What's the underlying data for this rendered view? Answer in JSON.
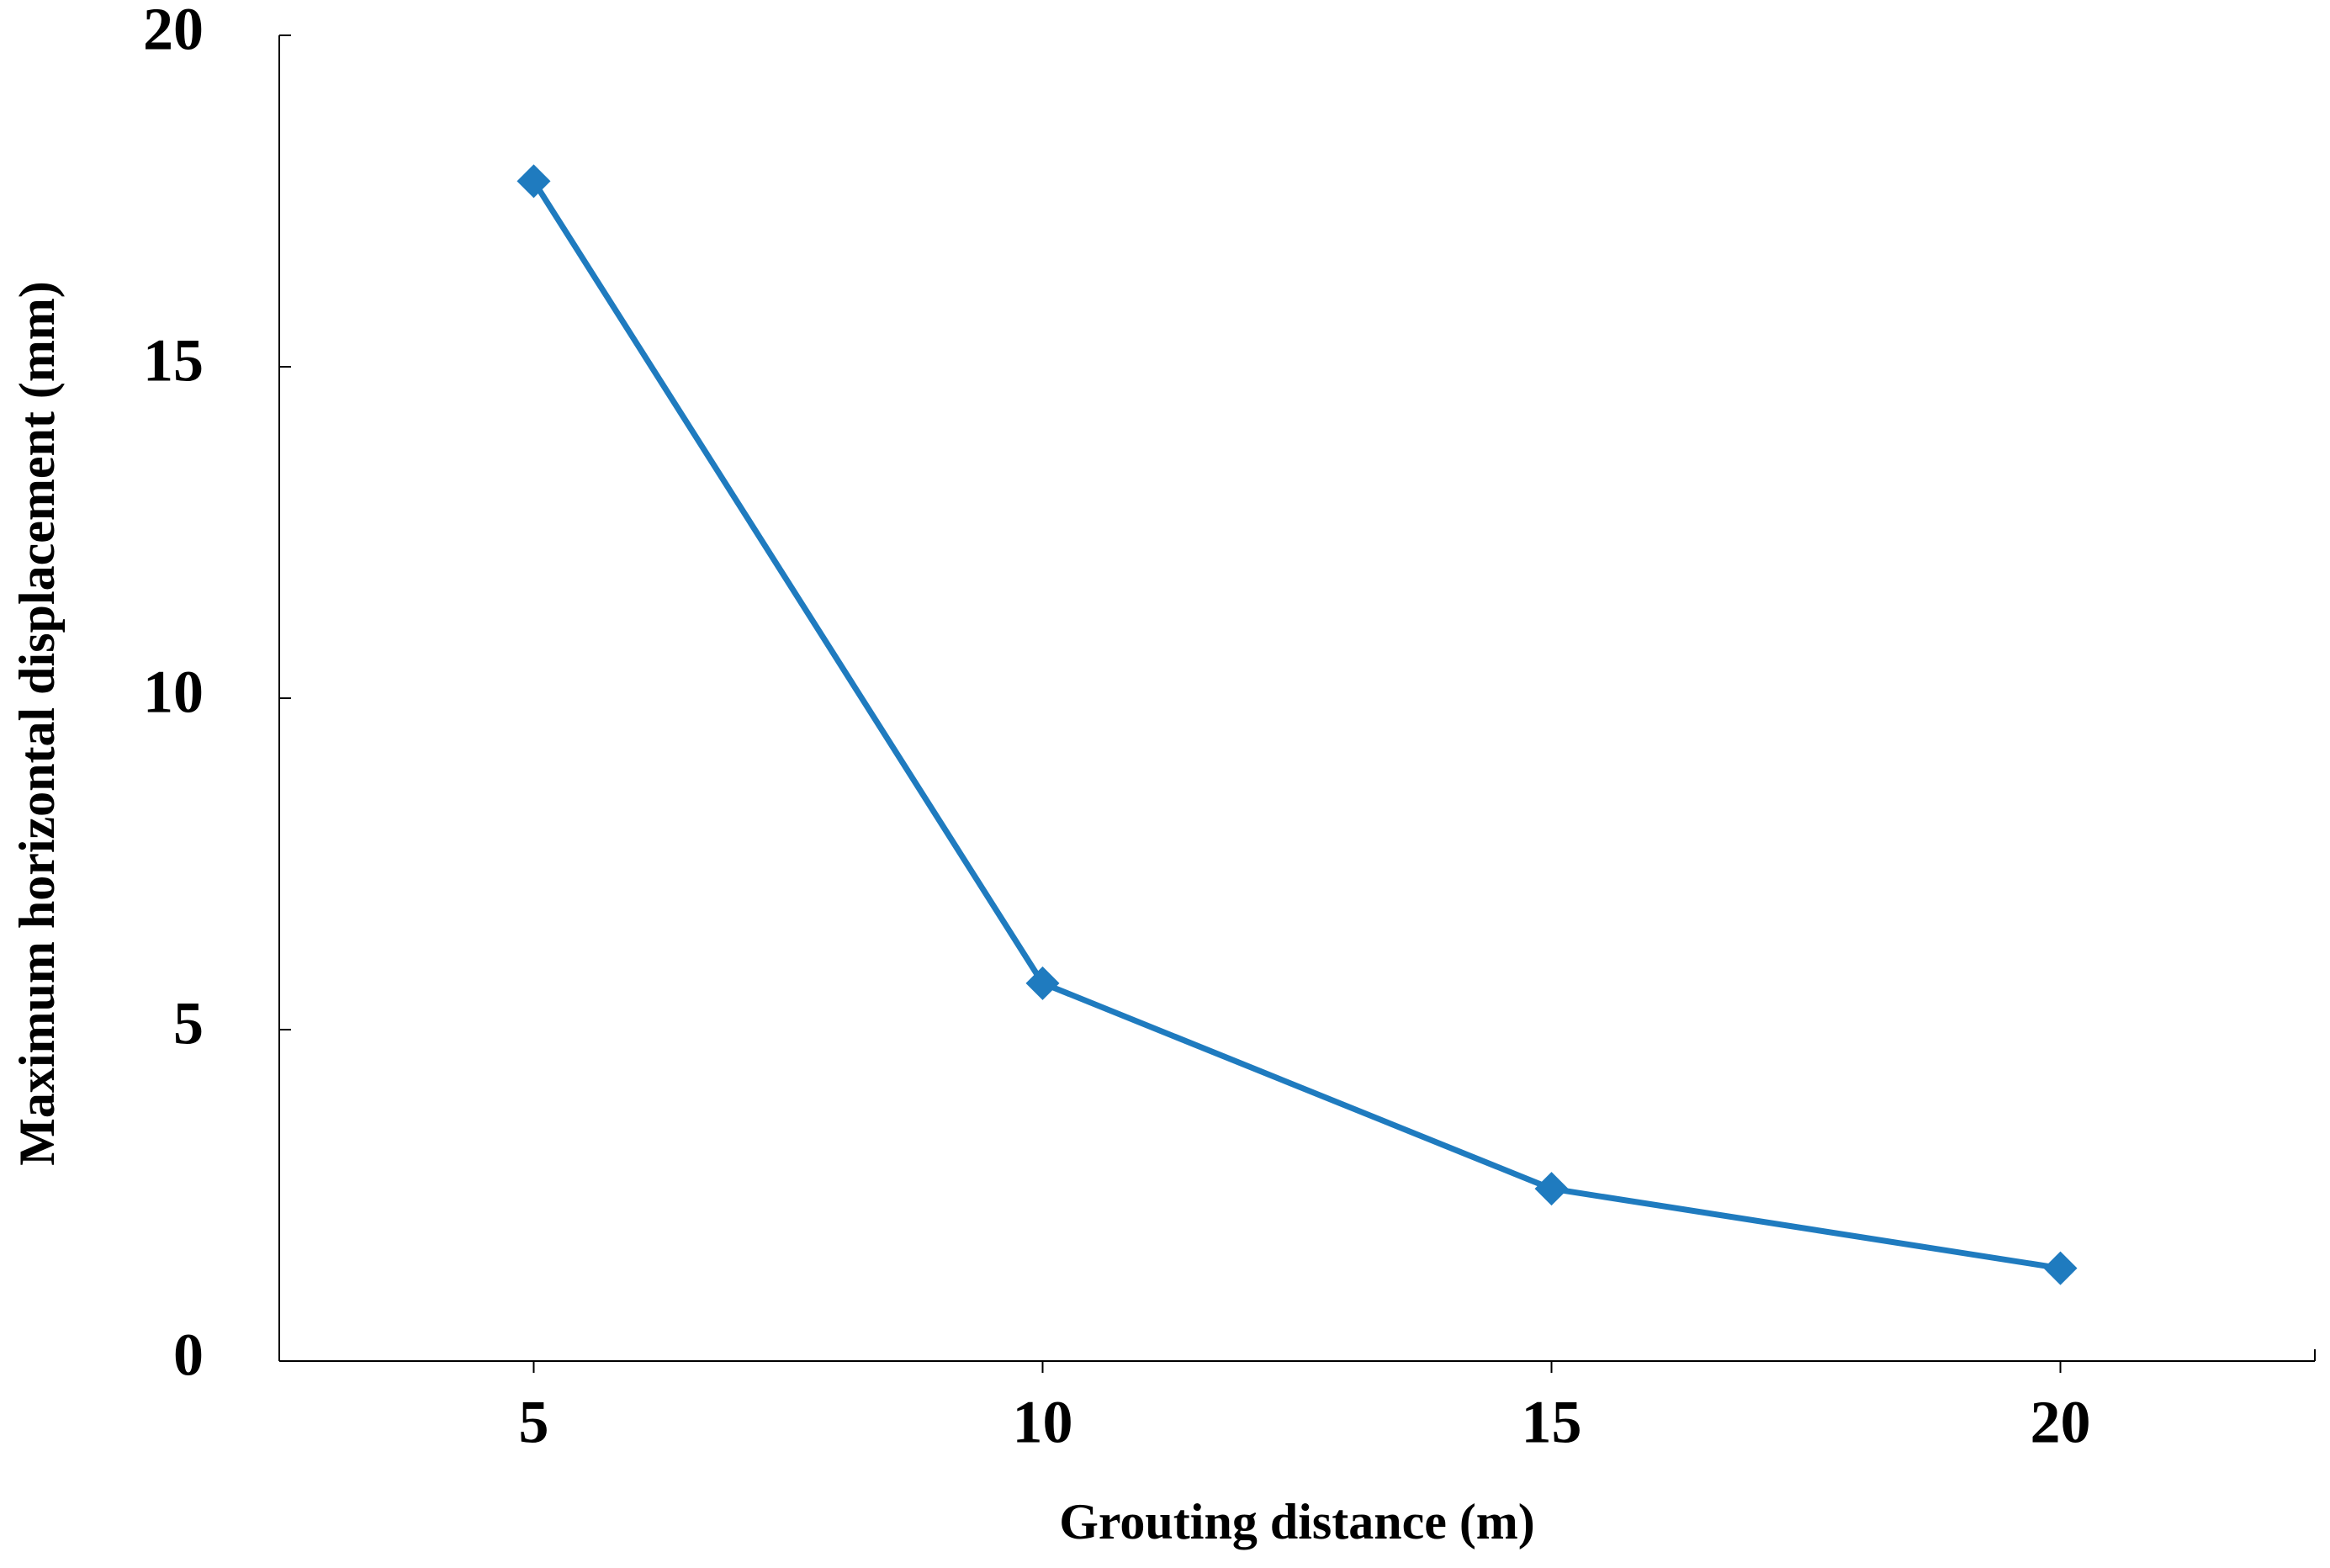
{
  "chart_data": {
    "type": "line",
    "x_label": "Grouting distance (m)",
    "y_label": "Maximum horizontal displacement (mm)",
    "x": [
      5,
      10,
      15,
      20
    ],
    "series": [
      {
        "name": "Maximum horizontal displacement",
        "color": "#1f7bbf",
        "values": [
          17.8,
          5.7,
          2.6,
          1.4
        ]
      }
    ],
    "xlim": [
      2.5,
      22.5
    ],
    "xticks": [
      5,
      10,
      15,
      20
    ],
    "ylim": [
      0,
      20
    ],
    "yticks": [
      0,
      5,
      10,
      15,
      20
    ],
    "grid": false,
    "marker": "diamond"
  }
}
